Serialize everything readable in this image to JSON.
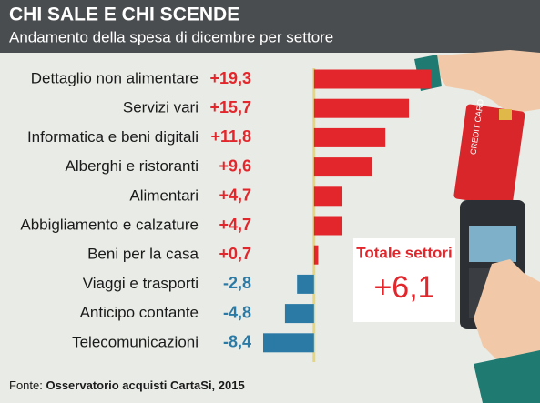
{
  "chart_data": {
    "type": "bar",
    "title": "CHI SALE E CHI SCENDE",
    "subtitle": "Andamento della spesa di dicembre per settore",
    "categories": [
      "Dettaglio non alimentare",
      "Servizi vari",
      "Informatica e beni digitali",
      "Alberghi e ristoranti",
      "Alimentari",
      "Abbigliamento e calzature",
      "Beni per la casa",
      "Viaggi e trasporti",
      "Anticipo contante",
      "Telecomunicazioni"
    ],
    "values": [
      19.3,
      15.7,
      11.8,
      9.6,
      4.7,
      4.7,
      0.7,
      -2.8,
      -4.8,
      -8.4
    ],
    "value_labels": [
      "+19,3",
      "+15,7",
      "+11,8",
      "+9,6",
      "+4,7",
      "+4,7",
      "+0,7",
      "-2,8",
      "-4,8",
      "-8,4"
    ],
    "positive_color": "#e3262b",
    "negative_color": "#2b7aa6",
    "total": {
      "label": "Totale settori",
      "value": 6.1,
      "value_label": "+6,1"
    },
    "source_label": "Fonte:",
    "source": "Osservatorio acquisti CartaSi, 2015"
  }
}
